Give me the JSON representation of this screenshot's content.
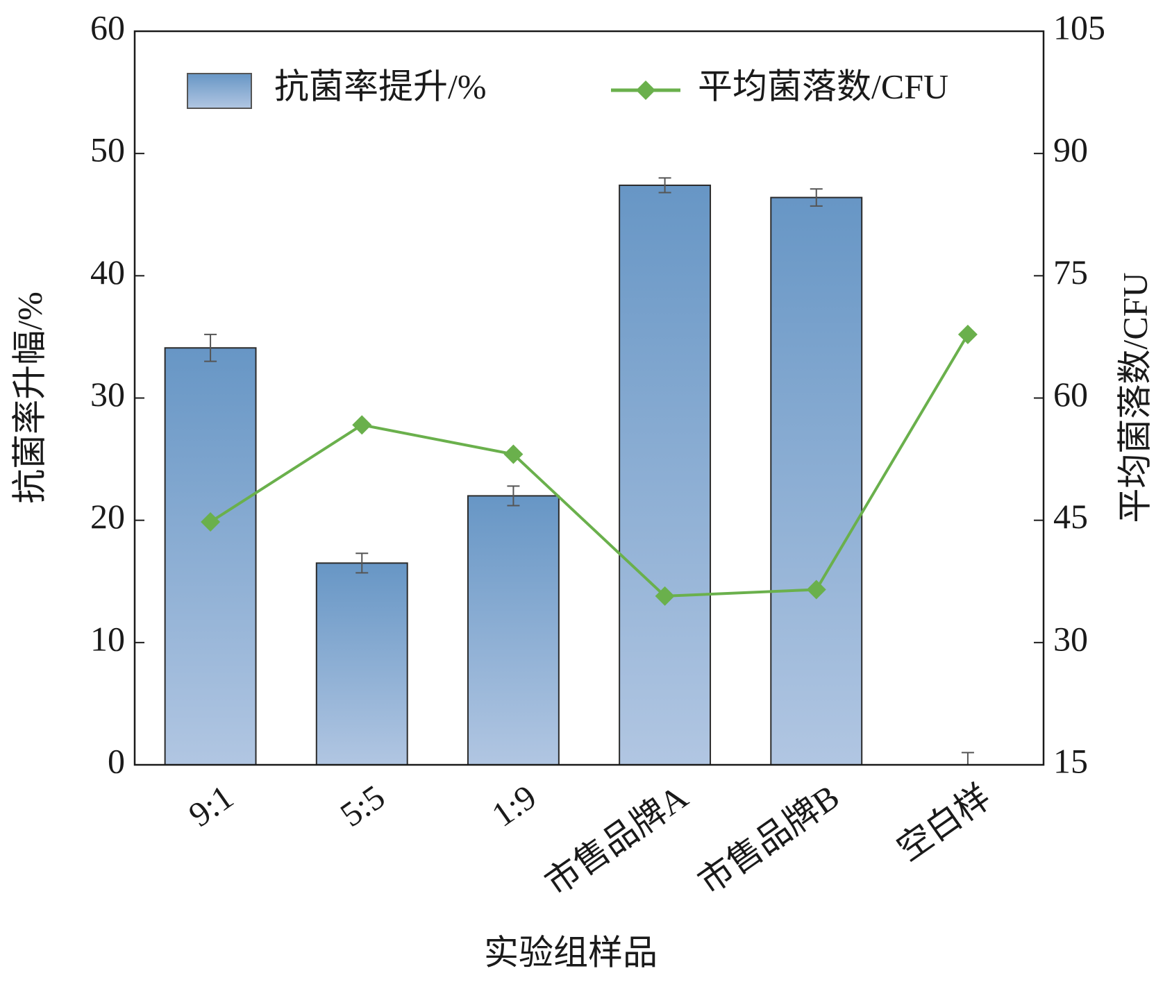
{
  "chart_data": {
    "type": "bar",
    "xlabel": "实验组样品",
    "ylabel": "抗菌率升幅/%",
    "y2label": "平均菌落数/CFU",
    "categories": [
      "9:1",
      "5:5",
      "1:9",
      "市售品牌A",
      "市售品牌B",
      "空白样"
    ],
    "series": [
      {
        "name": "抗菌率提升/%",
        "type": "bar",
        "color": "#6f9bc8",
        "values": [
          34.1,
          16.5,
          22.0,
          47.4,
          46.4,
          0
        ],
        "errors": [
          1.1,
          0.8,
          0.8,
          0.6,
          0.7,
          1.0
        ]
      },
      {
        "name": "平均菌落数/CFU",
        "type": "line",
        "axis": "y2",
        "color": "#6ab04c",
        "values": [
          44.8,
          56.7,
          53.1,
          35.7,
          36.5,
          67.8
        ]
      }
    ],
    "ylim": [
      0,
      60
    ],
    "yticks": [
      0,
      10,
      20,
      30,
      40,
      50,
      60
    ],
    "y2lim": [
      15,
      105
    ],
    "y2ticks": [
      15,
      30,
      45,
      60,
      75,
      90,
      105
    ]
  }
}
